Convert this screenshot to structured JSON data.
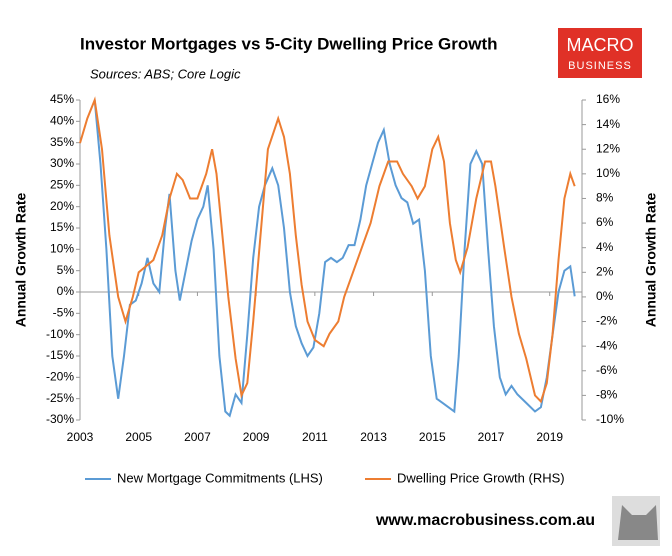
{
  "chart_data": {
    "type": "line",
    "title": "Investor Mortgages vs 5-City Dwelling Price Growth",
    "subtitle": "Sources: ABS; Core Logic",
    "ylabel": "Annual Growth Rate",
    "y2label": "Annual Growth Rate",
    "brand": [
      "MACRO",
      "BUSINESS"
    ],
    "website": "www.macrobusiness.com.au",
    "xlim": [
      2003,
      2020.1
    ],
    "xticks": [
      2003,
      2005,
      2007,
      2009,
      2011,
      2013,
      2015,
      2017,
      2019
    ],
    "ylim": [
      -30,
      45
    ],
    "yticks": [
      {
        "value": -30,
        "label": "-30%"
      },
      {
        "value": -25,
        "label": "-25%"
      },
      {
        "value": -20,
        "label": "-20%"
      },
      {
        "value": -15,
        "label": "-15%"
      },
      {
        "value": -10,
        "label": "-10%"
      },
      {
        "value": -5,
        "label": "-5%"
      },
      {
        "value": 0,
        "label": "0%"
      },
      {
        "value": 5,
        "label": "5%"
      },
      {
        "value": 10,
        "label": "10%"
      },
      {
        "value": 15,
        "label": "15%"
      },
      {
        "value": 20,
        "label": "20%"
      },
      {
        "value": 25,
        "label": "25%"
      },
      {
        "value": 30,
        "label": "30%"
      },
      {
        "value": 35,
        "label": "35%"
      },
      {
        "value": 40,
        "label": "40%"
      },
      {
        "value": 45,
        "label": "45%"
      }
    ],
    "y2lim": [
      -10,
      16
    ],
    "y2ticks": [
      {
        "value": -10,
        "label": "-10%"
      },
      {
        "value": -8,
        "label": "-8%"
      },
      {
        "value": -6,
        "label": "-6%"
      },
      {
        "value": -4,
        "label": "-4%"
      },
      {
        "value": -2,
        "label": "-2%"
      },
      {
        "value": 0,
        "label": "0%"
      },
      {
        "value": 2,
        "label": "2%"
      },
      {
        "value": 4,
        "label": "4%"
      },
      {
        "value": 6,
        "label": "6%"
      },
      {
        "value": 8,
        "label": "8%"
      },
      {
        "value": 10,
        "label": "10%"
      },
      {
        "value": 12,
        "label": "12%"
      },
      {
        "value": 14,
        "label": "14%"
      },
      {
        "value": 16,
        "label": "16%"
      }
    ],
    "series": [
      {
        "name": "New Mortgage Commitments (LHS)",
        "color": "#5b9bd5",
        "axis": "y",
        "x": [
          2003.5,
          2003.7,
          2003.9,
          2004.1,
          2004.3,
          2004.5,
          2004.7,
          2004.9,
          2005.1,
          2005.3,
          2005.5,
          2005.7,
          2005.9,
          2006.05,
          2006.25,
          2006.4,
          2006.6,
          2006.8,
          2007.0,
          2007.2,
          2007.35,
          2007.55,
          2007.75,
          2007.95,
          2008.1,
          2008.3,
          2008.5,
          2008.7,
          2008.9,
          2009.1,
          2009.3,
          2009.55,
          2009.75,
          2009.95,
          2010.15,
          2010.35,
          2010.55,
          2010.75,
          2010.95,
          2011.15,
          2011.35,
          2011.55,
          2011.75,
          2011.95,
          2012.15,
          2012.35,
          2012.55,
          2012.75,
          2012.95,
          2013.15,
          2013.35,
          2013.55,
          2013.75,
          2013.95,
          2014.15,
          2014.35,
          2014.55,
          2014.75,
          2014.95,
          2015.15,
          2015.35,
          2015.55,
          2015.75,
          2015.9,
          2016.1,
          2016.3,
          2016.5,
          2016.7,
          2016.9,
          2017.1,
          2017.3,
          2017.5,
          2017.7,
          2017.9,
          2018.2,
          2018.5,
          2018.7,
          2018.9,
          2019.1,
          2019.3,
          2019.5,
          2019.7,
          2019.85
        ],
        "values": [
          45,
          30,
          10,
          -15,
          -25,
          -15,
          -3,
          -2,
          2,
          8,
          2,
          0,
          15,
          23,
          5,
          -2,
          5,
          12,
          17,
          20,
          25,
          10,
          -15,
          -28,
          -29,
          -24,
          -26,
          -10,
          8,
          20,
          25,
          29,
          25,
          15,
          0,
          -8,
          -12,
          -15,
          -13,
          -5,
          7,
          8,
          7,
          8,
          11,
          11,
          17,
          25,
          30,
          35,
          38,
          30,
          25,
          22,
          21,
          16,
          17,
          5,
          -15,
          -25,
          -26,
          -27,
          -28,
          -15,
          10,
          30,
          33,
          30,
          10,
          -8,
          -20,
          -24,
          -22,
          -24,
          -26,
          -28,
          -27,
          -20,
          -10,
          0,
          5,
          6,
          -1
        ]
      },
      {
        "name": "Dwelling Price Growth (RHS)",
        "color": "#ed7d31",
        "axis": "y2",
        "x": [
          2003.0,
          2003.25,
          2003.5,
          2003.75,
          2004.0,
          2004.3,
          2004.55,
          2004.8,
          2005.0,
          2005.5,
          2005.8,
          2006.05,
          2006.3,
          2006.5,
          2006.75,
          2007.0,
          2007.3,
          2007.5,
          2007.65,
          2007.85,
          2008.05,
          2008.3,
          2008.5,
          2008.7,
          2008.9,
          2009.15,
          2009.4,
          2009.75,
          2009.95,
          2010.15,
          2010.35,
          2010.55,
          2010.75,
          2011.0,
          2011.3,
          2011.5,
          2011.8,
          2012.0,
          2012.3,
          2012.6,
          2012.9,
          2013.2,
          2013.5,
          2013.8,
          2014.0,
          2014.3,
          2014.5,
          2014.75,
          2015.0,
          2015.2,
          2015.4,
          2015.6,
          2015.8,
          2015.95,
          2016.2,
          2016.5,
          2016.8,
          2017.0,
          2017.15,
          2017.45,
          2017.7,
          2017.95,
          2018.2,
          2018.5,
          2018.7,
          2018.9,
          2019.1,
          2019.3,
          2019.5,
          2019.7,
          2019.85
        ],
        "values": [
          12.5,
          14.5,
          16,
          12,
          5,
          0,
          -2,
          0,
          2,
          3,
          5,
          8,
          10,
          9.5,
          8,
          8,
          10,
          12,
          10,
          5,
          0,
          -5,
          -8,
          -7,
          -2,
          5,
          12,
          14.5,
          13,
          10,
          5,
          1,
          -2,
          -3.5,
          -4,
          -3,
          -2,
          0,
          2,
          4,
          6,
          9,
          11,
          11,
          10,
          9,
          8,
          9,
          12,
          13,
          11,
          6,
          3,
          2,
          4,
          8,
          11,
          11,
          9,
          4,
          0,
          -3,
          -5,
          -8,
          -8.5,
          -7,
          -3,
          3,
          8,
          10,
          9
        ]
      }
    ]
  }
}
